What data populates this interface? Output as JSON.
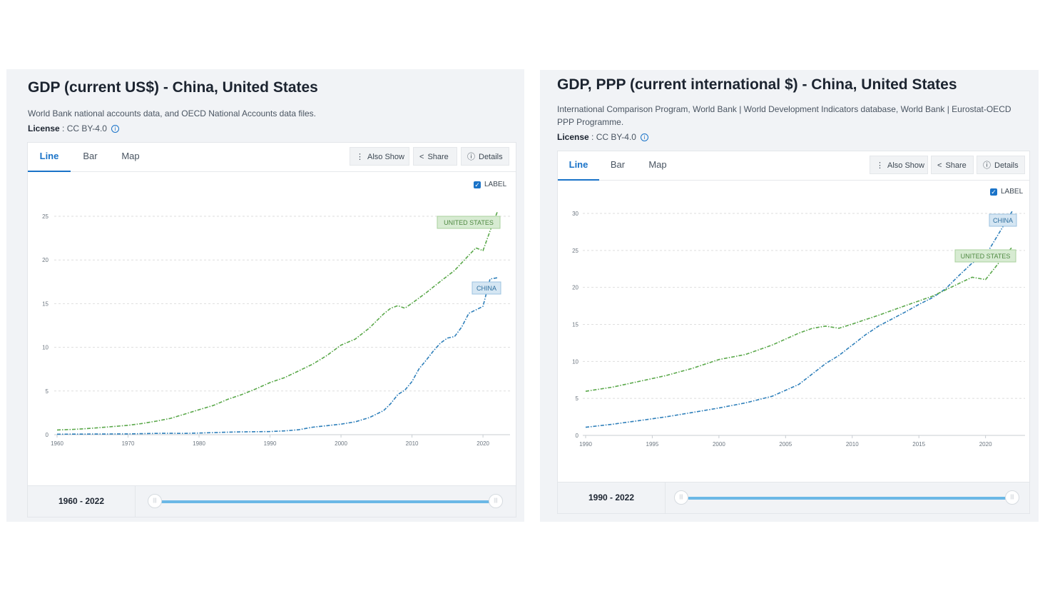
{
  "panels": [
    {
      "title": "GDP (current US$) - China, United States",
      "source": "World Bank national accounts data, and OECD National Accounts data files.",
      "license_label": "License",
      "license_value": " : CC BY-4.0",
      "tabs": [
        "Line",
        "Bar",
        "Map"
      ],
      "buttons": {
        "also_show": "Also Show",
        "share": "Share",
        "details": "Details"
      },
      "label_toggle": "LABEL",
      "range": "1960 - 2022"
    },
    {
      "title": "GDP, PPP (current international $) - China, United States",
      "source": "International Comparison Program, World Bank | World Development Indicators database, World Bank | Eurostat-OECD PPP Programme.",
      "license_label": "License",
      "license_value": " : CC BY-4.0",
      "tabs": [
        "Line",
        "Bar",
        "Map"
      ],
      "buttons": {
        "also_show": "Also Show",
        "share": "Share",
        "details": "Details"
      },
      "label_toggle": "LABEL",
      "range": "1990 - 2022"
    }
  ],
  "colors": {
    "china": "#2e7fba",
    "united_states": "#5aa84a",
    "accent": "#1a73c8"
  },
  "chart_data": [
    {
      "type": "line",
      "title": "GDP (current US$) - China, United States",
      "xlabel": "",
      "ylabel": "",
      "xlim": [
        1960,
        2022
      ],
      "ylim": [
        0,
        25
      ],
      "xticks": [
        1960,
        1970,
        1980,
        1990,
        2000,
        2010,
        2020
      ],
      "yticks": [
        0,
        5,
        10,
        15,
        20,
        25
      ],
      "grid": true,
      "series": [
        {
          "name": "UNITED STATES",
          "color": "#5aa84a",
          "style": "dash-dot",
          "x": [
            1960,
            1962,
            1964,
            1966,
            1968,
            1970,
            1972,
            1974,
            1976,
            1978,
            1980,
            1982,
            1984,
            1986,
            1988,
            1990,
            1992,
            1994,
            1996,
            1998,
            2000,
            2002,
            2004,
            2006,
            2007,
            2008,
            2009,
            2010,
            2012,
            2014,
            2016,
            2018,
            2019,
            2020,
            2021,
            2022
          ],
          "y": [
            0.54,
            0.6,
            0.69,
            0.81,
            0.94,
            1.07,
            1.28,
            1.55,
            1.87,
            2.36,
            2.86,
            3.34,
            4.04,
            4.58,
            5.24,
            5.96,
            6.52,
            7.29,
            8.07,
            9.06,
            10.25,
            10.94,
            12.21,
            13.82,
            14.47,
            14.77,
            14.48,
            15.05,
            16.25,
            17.55,
            18.8,
            20.53,
            21.38,
            21.06,
            23.32,
            25.46
          ]
        },
        {
          "name": "CHINA",
          "color": "#2e7fba",
          "style": "dash-dot",
          "x": [
            1960,
            1965,
            1970,
            1975,
            1978,
            1980,
            1985,
            1990,
            1992,
            1994,
            1996,
            1998,
            2000,
            2002,
            2004,
            2006,
            2007,
            2008,
            2009,
            2010,
            2011,
            2012,
            2013,
            2014,
            2015,
            2016,
            2017,
            2018,
            2019,
            2020,
            2021,
            2022
          ],
          "y": [
            0.06,
            0.07,
            0.09,
            0.16,
            0.15,
            0.19,
            0.31,
            0.36,
            0.43,
            0.56,
            0.86,
            1.03,
            1.21,
            1.47,
            1.96,
            2.75,
            3.55,
            4.59,
            5.1,
            6.09,
            7.55,
            8.53,
            9.57,
            10.48,
            11.06,
            11.23,
            12.31,
            13.89,
            14.28,
            14.69,
            17.82,
            17.96
          ]
        }
      ]
    },
    {
      "type": "line",
      "title": "GDP, PPP (current international $) - China, United States",
      "xlabel": "",
      "ylabel": "",
      "xlim": [
        1990,
        2022
      ],
      "ylim": [
        0,
        30
      ],
      "xticks": [
        1990,
        1995,
        2000,
        2005,
        2010,
        2015,
        2020
      ],
      "yticks": [
        0,
        5,
        10,
        15,
        20,
        25,
        30
      ],
      "grid": true,
      "series": [
        {
          "name": "CHINA",
          "color": "#2e7fba",
          "style": "dash-dot",
          "x": [
            1990,
            1992,
            1994,
            1996,
            1998,
            2000,
            2002,
            2004,
            2006,
            2008,
            2009,
            2010,
            2011,
            2012,
            2014,
            2015,
            2016,
            2017,
            2018,
            2019,
            2020,
            2021,
            2022
          ],
          "y": [
            1.1,
            1.5,
            2.0,
            2.5,
            3.1,
            3.7,
            4.4,
            5.3,
            6.9,
            9.7,
            10.8,
            12.2,
            13.6,
            14.8,
            16.7,
            17.7,
            18.6,
            19.8,
            21.6,
            23.3,
            24.3,
            27.3,
            30.3
          ]
        },
        {
          "name": "UNITED STATES",
          "color": "#5aa84a",
          "style": "dash-dot",
          "x": [
            1990,
            1992,
            1994,
            1996,
            1998,
            2000,
            2002,
            2004,
            2006,
            2007,
            2008,
            2009,
            2010,
            2012,
            2014,
            2016,
            2018,
            2019,
            2020,
            2021,
            2022
          ],
          "y": [
            5.96,
            6.52,
            7.29,
            8.07,
            9.06,
            10.25,
            10.94,
            12.21,
            13.82,
            14.47,
            14.77,
            14.48,
            15.05,
            16.25,
            17.55,
            18.8,
            20.53,
            21.38,
            21.06,
            23.32,
            25.46
          ]
        }
      ]
    }
  ]
}
